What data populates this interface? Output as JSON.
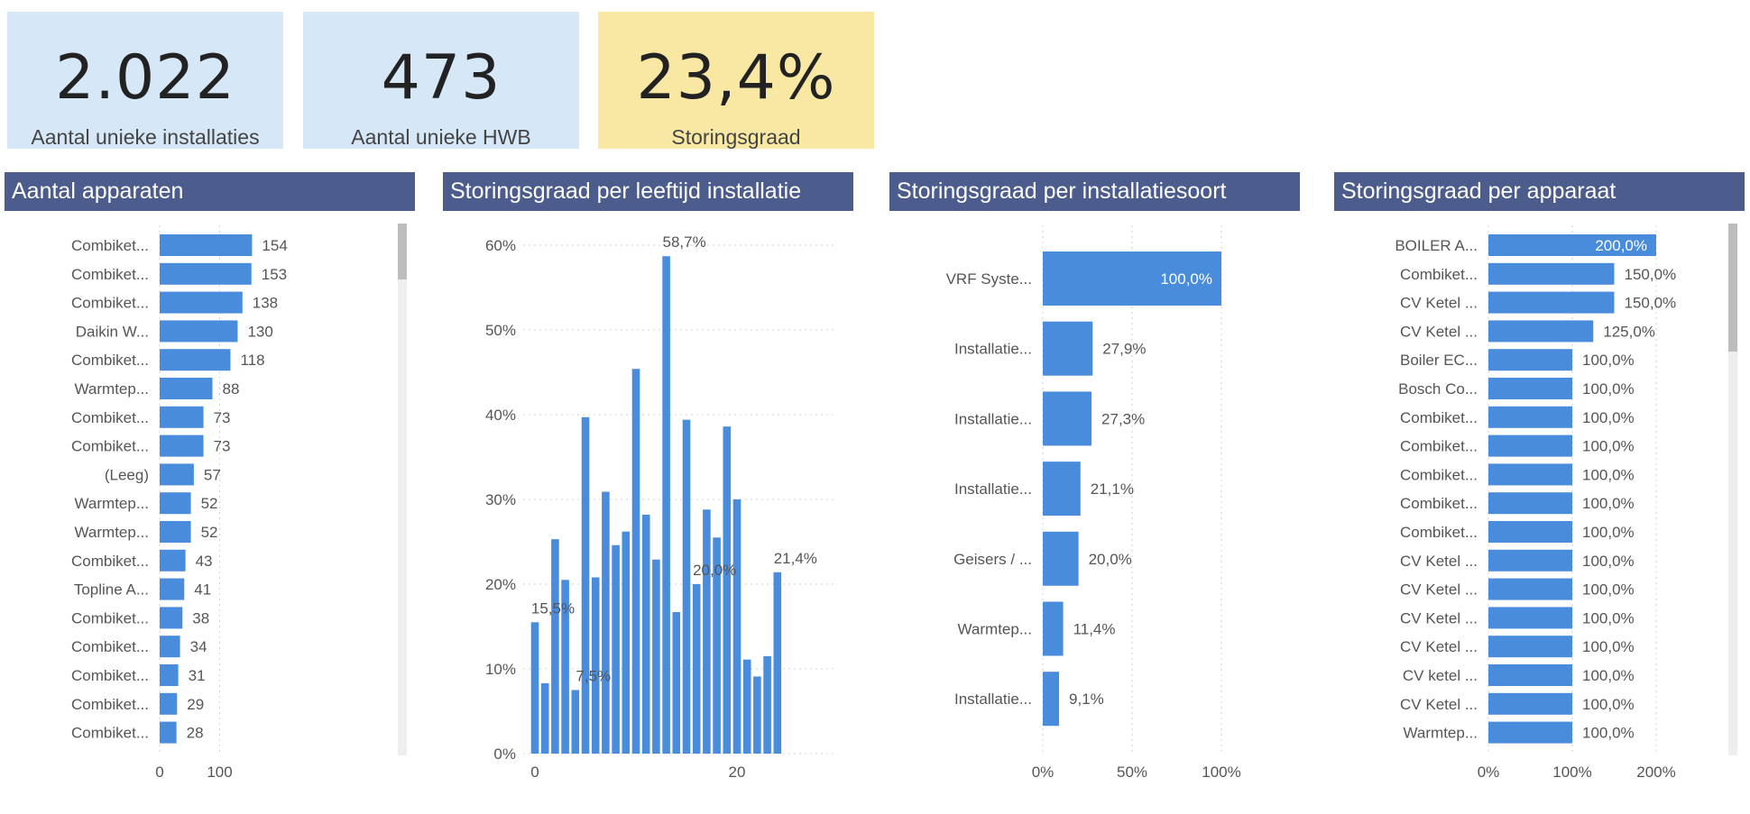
{
  "colors": {
    "card_blue": "#d6e8f8",
    "card_yellow": "#f8e8a4",
    "header": "#4c5c8c",
    "bar": "#4a8cdc",
    "scrollbar": "#bdbdbd",
    "scroll_track": "#eeeeee"
  },
  "kpis": [
    {
      "value": "2.022",
      "label": "Aantal unieke installaties",
      "color": "card_blue"
    },
    {
      "value": "473",
      "label": "Aantal unieke HWB",
      "color": "card_blue"
    },
    {
      "value": "23,4%",
      "label": "Storingsgraad",
      "color": "card_yellow"
    }
  ],
  "chart_data": [
    {
      "type": "bar",
      "orientation": "horizontal",
      "title": "Aantal apparaten",
      "categories": [
        "Combiket...",
        "Combiket...",
        "Combiket...",
        "Daikin W...",
        "Combiket...",
        "Warmtep...",
        "Combiket...",
        "Combiket...",
        "(Leeg)",
        "Warmtep...",
        "Warmtep...",
        "Combiket...",
        "Topline A...",
        "Combiket...",
        "Combiket...",
        "Combiket...",
        "Combiket...",
        "Combiket..."
      ],
      "values": [
        154,
        153,
        138,
        130,
        118,
        88,
        73,
        73,
        57,
        52,
        52,
        43,
        41,
        38,
        34,
        31,
        29,
        28
      ],
      "data_labels": [
        "154",
        "153",
        "138",
        "130",
        "118",
        "88",
        "73",
        "73",
        "57",
        "52",
        "52",
        "43",
        "41",
        "38",
        "34",
        "31",
        "29",
        "28"
      ],
      "xlim": [
        0,
        200
      ],
      "ticks": [
        0,
        100
      ],
      "tick_labels": [
        "0",
        "100"
      ],
      "grid": true,
      "scrollbar": true
    },
    {
      "type": "bar",
      "orientation": "vertical",
      "title": "Storingsgraad per leeftijd installatie",
      "x": [
        0,
        1,
        2,
        3,
        4,
        5,
        6,
        7,
        8,
        9,
        10,
        11,
        12,
        13,
        14,
        15,
        16,
        17,
        18,
        19,
        20,
        21,
        22,
        23,
        24
      ],
      "values": [
        15.5,
        8.3,
        25.3,
        20.5,
        7.5,
        39.7,
        20.8,
        30.9,
        24.6,
        26.2,
        45.4,
        28.2,
        22.9,
        58.7,
        16.7,
        39.4,
        20.0,
        28.8,
        25.5,
        38.6,
        30.0,
        11.1,
        9.1,
        11.5,
        21.4
      ],
      "data_labels": [
        {
          "x": 0,
          "text": "15,5%"
        },
        {
          "x": 4,
          "text": "7,5%"
        },
        {
          "x": 13,
          "text": "58,7%"
        },
        {
          "x": 16,
          "text": "20,0%"
        },
        {
          "x": 24,
          "text": "21,4%"
        }
      ],
      "ylim": [
        0,
        60
      ],
      "yticks": [
        0,
        10,
        20,
        30,
        40,
        50,
        60
      ],
      "ytick_labels": [
        "0%",
        "10%",
        "20%",
        "30%",
        "40%",
        "50%",
        "60%"
      ],
      "xlim": [
        -0.5,
        30
      ],
      "xticks": [
        0,
        20
      ],
      "xtick_labels": [
        "0",
        "20"
      ],
      "grid": true
    },
    {
      "type": "bar",
      "orientation": "horizontal",
      "title": "Storingsgraad per installatiesoort",
      "categories": [
        "VRF Syste...",
        "Installatie...",
        "Installatie...",
        "Installatie...",
        "Geisers / ...",
        "Warmtep...",
        "Installatie..."
      ],
      "values": [
        100.0,
        27.9,
        27.3,
        21.1,
        20.0,
        11.4,
        9.1
      ],
      "data_labels": [
        "100,0%",
        "27,9%",
        "27,3%",
        "21,1%",
        "20,0%",
        "11,4%",
        "9,1%"
      ],
      "xlim": [
        0,
        100
      ],
      "ticks": [
        0,
        50,
        100
      ],
      "tick_labels": [
        "0%",
        "50%",
        "100%"
      ],
      "grid": true
    },
    {
      "type": "bar",
      "orientation": "horizontal",
      "title": "Storingsgraad per apparaat",
      "categories": [
        "BOILER A...",
        "Combiket...",
        "CV Ketel ...",
        "CV Ketel ...",
        "Boiler EC...",
        "Bosch Co...",
        "Combiket...",
        "Combiket...",
        "Combiket...",
        "Combiket...",
        "Combiket...",
        "CV Ketel ...",
        "CV Ketel ...",
        "CV Ketel ...",
        "CV Ketel ...",
        "CV ketel ...",
        "CV Ketel ...",
        "Warmtep..."
      ],
      "values": [
        200,
        150,
        150,
        125,
        100,
        100,
        100,
        100,
        100,
        100,
        100,
        100,
        100,
        100,
        100,
        100,
        100,
        100
      ],
      "data_labels": [
        "200,0%",
        "150,0%",
        "150,0%",
        "125,0%",
        "100,0%",
        "100,0%",
        "100,0%",
        "100,0%",
        "100,0%",
        "100,0%",
        "100,0%",
        "100,0%",
        "100,0%",
        "100,0%",
        "100,0%",
        "100,0%",
        "100,0%",
        "100,0%"
      ],
      "xlim": [
        0,
        200
      ],
      "ticks": [
        0,
        100,
        200
      ],
      "tick_labels": [
        "0%",
        "100%",
        "200%"
      ],
      "grid": true,
      "scrollbar": true
    }
  ]
}
